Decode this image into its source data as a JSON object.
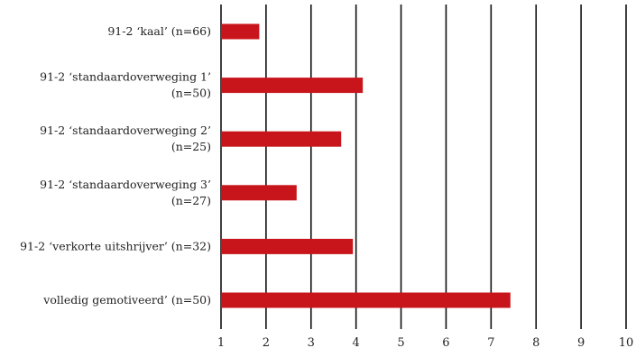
{
  "chart_data": {
    "type": "bar",
    "orientation": "horizontal",
    "categories": [
      [
        "91-2 ‘kaal’ (n=66)"
      ],
      [
        "91-2 ‘standaardoverweging 1’",
        "(n=50)"
      ],
      [
        "91-2 ‘standaardoverweging 2’",
        "(n=25)"
      ],
      [
        "91-2 ‘standaardoverweging 3’",
        "(n=27)"
      ],
      [
        "91-2 ‘verkorte uitshrijver’ (n=32)"
      ],
      [
        "volledig gemotiveerd’ (n=50)"
      ]
    ],
    "values": [
      1.85,
      4.15,
      3.67,
      2.68,
      3.93,
      7.43
    ],
    "xlim": [
      1,
      10
    ],
    "xticks": [
      "1",
      "2",
      "3",
      "4",
      "5",
      "6",
      "7",
      "8",
      "9",
      "10"
    ],
    "grid": "vertical",
    "bar_color": "#c8151b",
    "title": "",
    "xlabel": "",
    "ylabel": ""
  }
}
